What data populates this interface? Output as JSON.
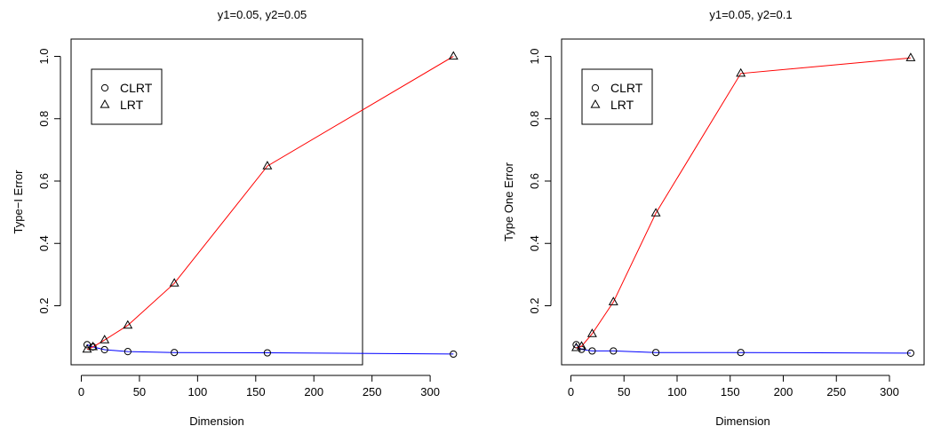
{
  "chart_data": [
    {
      "type": "line",
      "title": "y1=0.05,  y2=0.05",
      "xlabel": "Dimension",
      "ylabel": "Type−I Error",
      "xlim": [
        0,
        320
      ],
      "ylim": [
        0.04,
        1.0
      ],
      "x_ticks": [
        "0",
        "50",
        "100",
        "150",
        "200",
        "250",
        "300"
      ],
      "y_ticks": [
        "0.2",
        "0.4",
        "0.6",
        "0.8",
        "1.0"
      ],
      "legend": "top-left",
      "grid": false,
      "series": [
        {
          "name": "CLRT",
          "marker": "circle",
          "color": "#0000ff",
          "x": [
            5,
            10,
            20,
            40,
            80,
            160,
            320
          ],
          "y": [
            0.075,
            0.068,
            0.059,
            0.053,
            0.05,
            0.049,
            0.045
          ]
        },
        {
          "name": "LRT",
          "marker": "triangle",
          "color": "#ff0000",
          "x": [
            5,
            10,
            20,
            40,
            80,
            160,
            320
          ],
          "y": [
            0.06,
            0.068,
            0.09,
            0.137,
            0.272,
            0.648,
            1.0
          ]
        }
      ]
    },
    {
      "type": "line",
      "title": "y1=0.05,  y2=0.1",
      "xlabel": "Dimension",
      "ylabel": "Type One Error",
      "xlim": [
        0,
        320
      ],
      "ylim": [
        0.04,
        1.0
      ],
      "x_ticks": [
        "0",
        "50",
        "100",
        "150",
        "200",
        "250",
        "300"
      ],
      "y_ticks": [
        "0.2",
        "0.4",
        "0.6",
        "0.8",
        "1.0"
      ],
      "legend": "top-left",
      "grid": false,
      "series": [
        {
          "name": "CLRT",
          "marker": "circle",
          "color": "#0000ff",
          "x": [
            5,
            10,
            20,
            40,
            80,
            160,
            320
          ],
          "y": [
            0.075,
            0.06,
            0.055,
            0.055,
            0.05,
            0.05,
            0.048
          ]
        },
        {
          "name": "LRT",
          "marker": "triangle",
          "color": "#ff0000",
          "x": [
            5,
            10,
            20,
            40,
            80,
            160,
            320
          ],
          "y": [
            0.065,
            0.07,
            0.11,
            0.212,
            0.497,
            0.945,
            0.995
          ]
        }
      ]
    }
  ]
}
